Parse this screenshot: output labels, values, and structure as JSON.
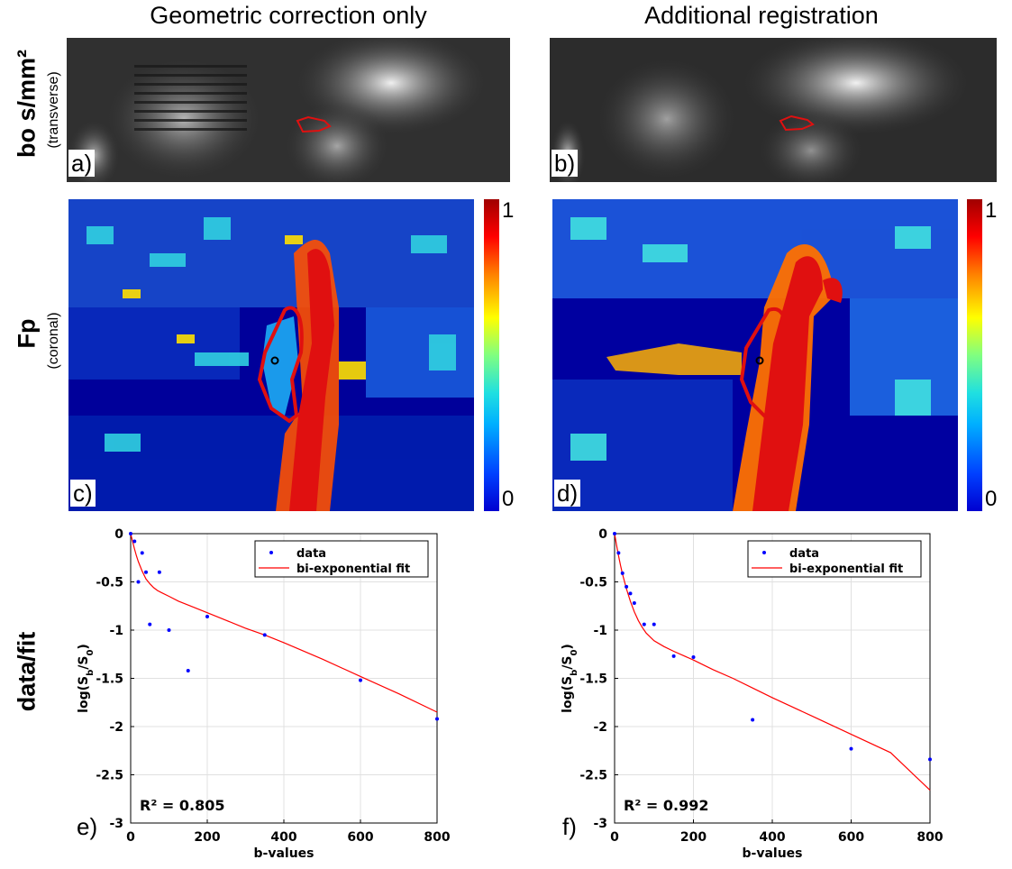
{
  "columns": {
    "left_title": "Geometric correction only",
    "right_title": "Additional registration"
  },
  "rows": {
    "top_main": "bo s/mm²",
    "top_sub": "(transverse)",
    "middle_main": "Fp",
    "middle_sub": "(coronal)",
    "bottom_main": "data/fit"
  },
  "panel_letters": {
    "a": "a)",
    "b": "b)",
    "c": "c)",
    "d": "d)",
    "e": "e)",
    "f": "f)"
  },
  "colorbar": {
    "max_label": "1",
    "min_label": "0"
  },
  "chart_data": [
    {
      "type": "scatter",
      "panel": "e",
      "xlabel": "b-values",
      "ylabel_base": "log(S",
      "ylabel_sub1": "b",
      "ylabel_mid": "/S",
      "ylabel_sub2": "0",
      "ylabel_end": ")",
      "xlim": [
        0,
        800
      ],
      "ylim": [
        -3,
        0
      ],
      "xticks": [
        0,
        200,
        400,
        600,
        800
      ],
      "yticks": [
        0,
        -0.5,
        -1,
        -1.5,
        -2,
        -2.5,
        -3
      ],
      "xtick_labels": [
        "0",
        "200",
        "400",
        "600",
        "800"
      ],
      "ytick_labels": [
        "0",
        "-0.5",
        "-1",
        "-1.5",
        "-2",
        "-2.5",
        "-3"
      ],
      "grid": true,
      "legend_position": "top-right",
      "annotation": "R² = 0.805",
      "series": [
        {
          "name": "data",
          "kind": "points",
          "color": "#0000ff",
          "x": [
            0,
            10,
            20,
            30,
            40,
            50,
            75,
            100,
            150,
            200,
            350,
            600,
            800
          ],
          "y": [
            0,
            -0.08,
            -0.5,
            -0.2,
            -0.4,
            -0.94,
            -0.4,
            -1.0,
            -1.42,
            -0.86,
            -1.05,
            -1.52,
            -1.92
          ]
        },
        {
          "name": "bi-exponential fit",
          "kind": "line",
          "color": "#ff0000",
          "x": [
            0,
            5,
            10,
            15,
            20,
            30,
            40,
            50,
            60,
            70,
            80,
            100,
            125,
            150,
            200,
            250,
            300,
            350,
            400,
            500,
            600,
            700,
            800
          ],
          "y": [
            0,
            -0.08,
            -0.16,
            -0.23,
            -0.29,
            -0.39,
            -0.47,
            -0.52,
            -0.56,
            -0.59,
            -0.61,
            -0.65,
            -0.7,
            -0.74,
            -0.82,
            -0.9,
            -0.98,
            -1.05,
            -1.13,
            -1.3,
            -1.48,
            -1.66,
            -1.85
          ]
        }
      ]
    },
    {
      "type": "scatter",
      "panel": "f",
      "xlabel": "b-values",
      "ylabel_base": "log(S",
      "ylabel_sub1": "b",
      "ylabel_mid": "/S",
      "ylabel_sub2": "0",
      "ylabel_end": ")",
      "xlim": [
        0,
        800
      ],
      "ylim": [
        -3,
        0
      ],
      "xticks": [
        0,
        200,
        400,
        600,
        800
      ],
      "yticks": [
        0,
        -0.5,
        -1,
        -1.5,
        -2,
        -2.5,
        -3
      ],
      "xtick_labels": [
        "0",
        "200",
        "400",
        "600",
        "800"
      ],
      "ytick_labels": [
        "0",
        "-0.5",
        "-1",
        "-1.5",
        "-2",
        "-2.5",
        "-3"
      ],
      "grid": true,
      "legend_position": "top-right",
      "annotation": "R² = 0.992",
      "series": [
        {
          "name": "data",
          "kind": "points",
          "color": "#0000ff",
          "x": [
            0,
            10,
            20,
            30,
            40,
            50,
            75,
            100,
            150,
            200,
            350,
            600,
            800
          ],
          "y": [
            0,
            -0.2,
            -0.41,
            -0.55,
            -0.62,
            -0.72,
            -0.94,
            -0.94,
            -1.27,
            -1.28,
            -1.93,
            -2.23,
            -2.34
          ]
        },
        {
          "name": "bi-exponential fit",
          "kind": "line",
          "color": "#ff0000",
          "x": [
            0,
            5,
            10,
            15,
            20,
            30,
            40,
            50,
            60,
            70,
            80,
            100,
            125,
            150,
            200,
            250,
            300,
            350,
            400,
            500,
            600,
            700,
            800
          ],
          "y": [
            0,
            -0.12,
            -0.23,
            -0.33,
            -0.42,
            -0.57,
            -0.7,
            -0.81,
            -0.9,
            -0.97,
            -1.03,
            -1.11,
            -1.17,
            -1.22,
            -1.31,
            -1.41,
            -1.5,
            -1.6,
            -1.7,
            -1.89,
            -2.08,
            -2.27,
            -2.66
          ]
        }
      ]
    }
  ]
}
